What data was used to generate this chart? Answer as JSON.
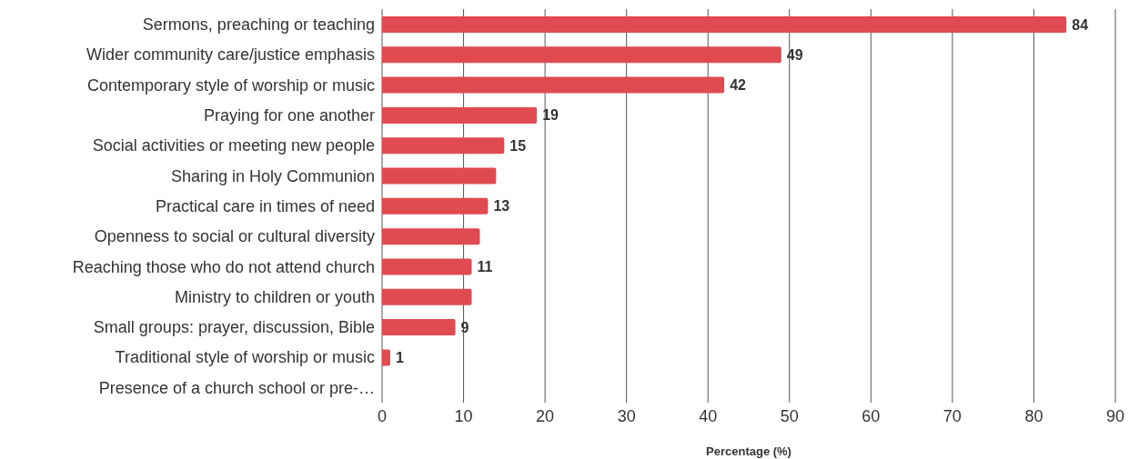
{
  "chart_data": {
    "type": "bar",
    "orientation": "horizontal",
    "xlabel": "Percentage (%)",
    "categories": [
      "Sermons, preaching or teaching",
      "Wider community care/justice emphasis",
      "Contemporary style of worship or music",
      "Praying for one another",
      "Social activities or meeting new people",
      "Sharing in Holy Communion",
      "Practical care in times of need",
      "Openness to social or cultural diversity",
      "Reaching those who do not attend church",
      "Ministry to children or youth",
      "Small groups: prayer, discussion, Bible",
      "Traditional style of worship or music",
      "Presence of a church school or pre-…"
    ],
    "values": [
      84,
      49,
      42,
      19,
      15,
      14,
      13,
      12,
      11,
      11,
      9,
      1,
      0
    ],
    "value_labels": [
      "84",
      "49",
      "42",
      "19",
      "15",
      null,
      "13",
      null,
      "11",
      null,
      "9",
      "1",
      null
    ],
    "color": "#e04b52",
    "xlim": [
      0,
      90
    ],
    "xticks": [
      0,
      10,
      20,
      30,
      40,
      50,
      60,
      70,
      80,
      90
    ],
    "grid": "x"
  }
}
